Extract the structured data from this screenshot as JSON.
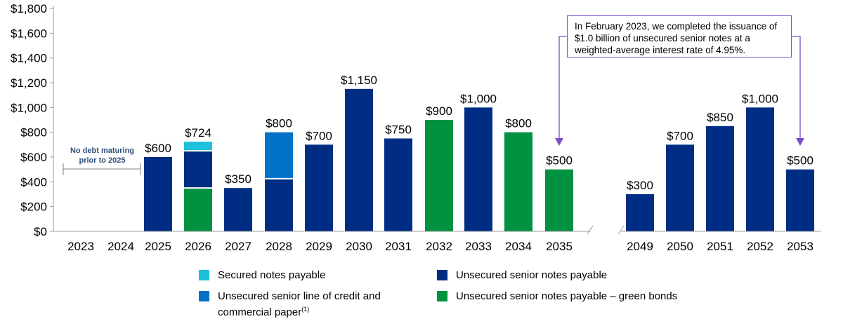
{
  "colors": {
    "secured": "#1ec0db",
    "unsecured": "#002d84",
    "credit_line": "#0073c6",
    "green_bonds": "#009240",
    "callout_border": "#7b4fc7"
  },
  "chart_data": {
    "type": "bar",
    "stacked": true,
    "ylim": [
      0,
      1800
    ],
    "yticks": [
      "$0",
      "$200",
      "$400",
      "$600",
      "$800",
      "$1,000",
      "$1,200",
      "$1,400",
      "$1,600",
      "$1,800"
    ],
    "categories": [
      "2023",
      "2024",
      "2025",
      "2026",
      "2027",
      "2028",
      "2029",
      "2030",
      "2031",
      "2032",
      "2033",
      "2034",
      "2035",
      "2049",
      "2050",
      "2051",
      "2052",
      "2053"
    ],
    "axis_break_after": "2035",
    "series": [
      {
        "name": "Unsecured senior notes payable – green bonds",
        "color_key": "green_bonds",
        "values": [
          0,
          0,
          0,
          350,
          0,
          0,
          0,
          0,
          0,
          900,
          0,
          800,
          500,
          0,
          0,
          0,
          0,
          0
        ]
      },
      {
        "name": "Unsecured senior notes payable",
        "color_key": "unsecured",
        "values": [
          0,
          0,
          600,
          300,
          350,
          425,
          700,
          1150,
          750,
          0,
          1000,
          0,
          0,
          300,
          700,
          850,
          1000,
          500
        ]
      },
      {
        "name": "Unsecured senior line of credit and commercial paper(1)",
        "color_key": "credit_line",
        "values": [
          0,
          0,
          0,
          0,
          0,
          375,
          0,
          0,
          0,
          0,
          0,
          0,
          0,
          0,
          0,
          0,
          0,
          0
        ]
      },
      {
        "name": "Secured notes payable",
        "color_key": "secured",
        "values": [
          0,
          0,
          0,
          74,
          0,
          0,
          0,
          0,
          0,
          0,
          0,
          0,
          0,
          0,
          0,
          0,
          0,
          0
        ]
      }
    ],
    "totals_labels": [
      "",
      "",
      "$600",
      "$724",
      "$350",
      "$800",
      "$700",
      "$1,150",
      "$750",
      "$900",
      "$1,000",
      "$800",
      "$500",
      "$300",
      "$700",
      "$850",
      "$1,000",
      "$500"
    ],
    "no_debt_note": "No debt maturing prior to 2025",
    "callout": "In February 2023, we completed the issuance of $1.0 billion of unsecured senior notes at a weighted-average interest rate of 4.95%."
  },
  "legend": {
    "secured": "Secured notes payable",
    "unsecured": "Unsecured senior notes payable",
    "credit_line_main": "Unsecured senior line of credit and",
    "credit_line_cont": "commercial paper",
    "credit_line_sup": "(1)",
    "green": "Unsecured senior notes payable – green bonds"
  }
}
